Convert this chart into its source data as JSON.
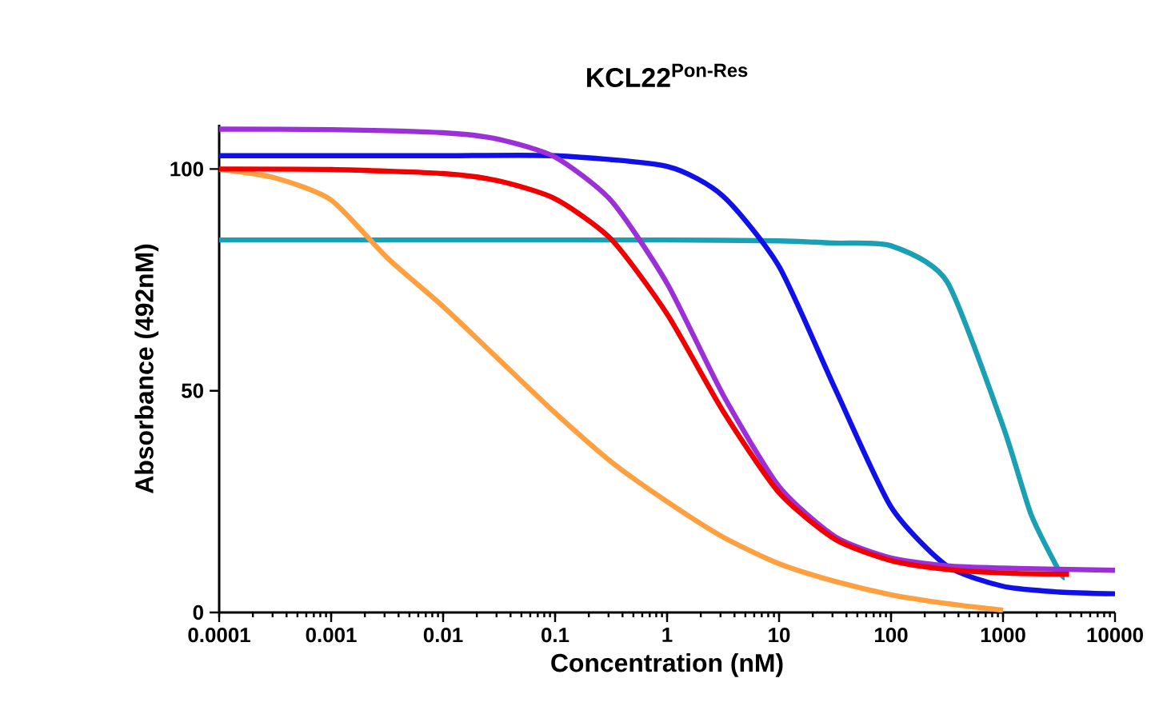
{
  "chart_data": {
    "type": "line",
    "title": "KCL22$^{Pon-Res}$",
    "xlabel": "Concentration (nM)",
    "ylabel": "Absorbance (492nM)",
    "log": "x",
    "xlim": [
      0.0001,
      10000
    ],
    "ylim": [
      0,
      110
    ],
    "xticks": [
      0.0001,
      0.001,
      0.01,
      0.1,
      1,
      10,
      100,
      1000,
      10000
    ],
    "yticks": [
      0,
      50,
      100
    ],
    "grid": false,
    "marker": "none",
    "line_style": "solid",
    "series": [
      {
        "color": "#1a9fb5",
        "x": [
          0.0001,
          0.001,
          0.01,
          0.1,
          1,
          10,
          31.6,
          100,
          316,
          1000,
          1780,
          3160,
          3550
        ],
        "values": [
          84,
          84,
          84,
          84,
          84,
          83.8,
          83.3,
          82.7,
          74.6,
          42,
          22.1,
          9.4,
          7.8
        ]
      },
      {
        "color": "#1010e8",
        "x": [
          0.0001,
          0.001,
          0.01,
          0.1,
          1,
          3.16,
          10,
          31.6,
          100,
          316,
          1000,
          3160,
          10000
        ],
        "values": [
          103,
          103,
          103,
          103,
          100.6,
          93.9,
          78,
          50.5,
          23.8,
          10.5,
          5.9,
          4.6,
          4.2
        ]
      },
      {
        "color": "#9b30d9",
        "x": [
          0.0001,
          0.001,
          0.01,
          0.0316,
          0.1,
          0.316,
          1,
          3.16,
          10,
          31.6,
          100,
          316,
          1000,
          10000
        ],
        "values": [
          109,
          108.9,
          108.2,
          106.7,
          102.7,
          92.9,
          74.2,
          49.1,
          28.4,
          17.1,
          12.3,
          10.5,
          10,
          9.5
        ]
      },
      {
        "color": "#ffa040",
        "x": [
          0.0001,
          0.000316,
          0.001,
          0.00316,
          0.01,
          0.0316,
          0.1,
          0.316,
          1,
          3.16,
          10,
          31.6,
          100,
          316,
          1000
        ],
        "values": [
          100,
          98,
          93,
          80,
          69,
          57,
          45,
          34,
          25,
          17,
          11,
          7,
          4,
          2,
          0.5
        ]
      },
      {
        "color": "#f00000",
        "x": [
          0.0001,
          0.001,
          0.01,
          0.0316,
          0.1,
          0.316,
          1,
          3.16,
          10,
          31.6,
          100,
          316,
          1000,
          3890
        ],
        "values": [
          100,
          99.9,
          99,
          97.3,
          93.3,
          84.2,
          67.3,
          45.4,
          27,
          16.5,
          11.7,
          9.7,
          8.9,
          8.6
        ]
      }
    ]
  }
}
